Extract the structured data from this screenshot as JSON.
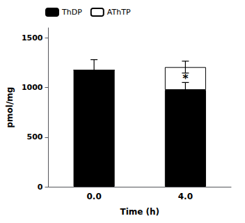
{
  "chart_data": {
    "type": "bar",
    "stacked": true,
    "categories": [
      "0.0",
      "4.0"
    ],
    "series": [
      {
        "name": "ThDP",
        "color": "#000000",
        "values": [
          1175,
          975
        ],
        "errors": [
          105,
          75
        ]
      },
      {
        "name": "AThTP",
        "color": "#ffffff",
        "values": [
          0,
          230
        ],
        "errors": [
          0,
          60
        ]
      }
    ],
    "annotations": [
      {
        "text": "*",
        "series": "AThTP",
        "category": "4.0"
      }
    ],
    "xlabel": "Time (h)",
    "ylabel": "pmol/mg",
    "ylim": [
      0,
      1600
    ],
    "yticks": [
      0,
      500,
      1000,
      1500
    ],
    "grid": false,
    "legend": "upper left"
  }
}
